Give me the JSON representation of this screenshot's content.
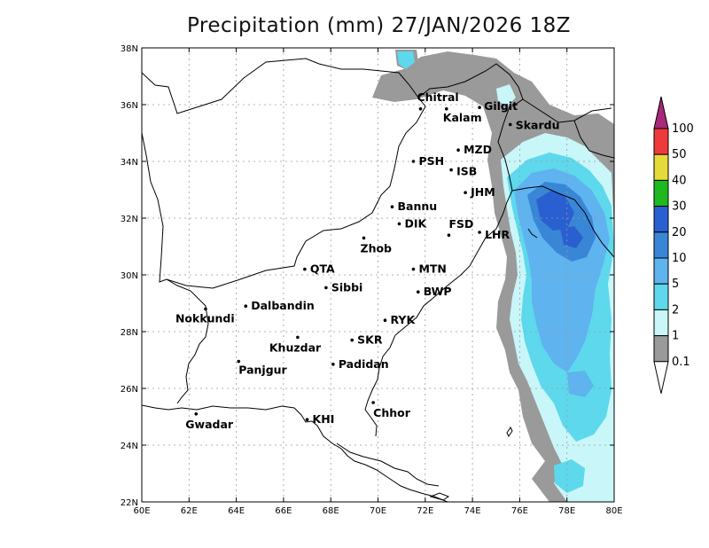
{
  "title": "Precipitation (mm) 27/JAN/2026 18Z",
  "map": {
    "x_ticks": [
      "60E",
      "62E",
      "64E",
      "66E",
      "68E",
      "70E",
      "72E",
      "74E",
      "76E",
      "78E",
      "80E"
    ],
    "y_ticks": [
      "22N",
      "24N",
      "26N",
      "28N",
      "30N",
      "32N",
      "34N",
      "36N",
      "38N"
    ],
    "lon_range": [
      60,
      80
    ],
    "lat_range": [
      22,
      38
    ],
    "cities": [
      {
        "name": "Chitral",
        "lon": 71.8,
        "lat": 35.85
      },
      {
        "name": "Kalam",
        "lon": 72.9,
        "lat": 35.85
      },
      {
        "name": "Gilgit",
        "lon": 74.3,
        "lat": 35.9
      },
      {
        "name": "Skardu",
        "lon": 75.6,
        "lat": 35.3
      },
      {
        "name": "MZD",
        "lon": 73.4,
        "lat": 34.4
      },
      {
        "name": "PSH",
        "lon": 71.5,
        "lat": 34.0
      },
      {
        "name": "ISB",
        "lon": 73.1,
        "lat": 33.7
      },
      {
        "name": "JHM",
        "lon": 73.7,
        "lat": 32.9
      },
      {
        "name": "Bannu",
        "lon": 70.6,
        "lat": 32.4
      },
      {
        "name": "DIK",
        "lon": 70.9,
        "lat": 31.8
      },
      {
        "name": "FSD",
        "lon": 73.0,
        "lat": 31.4
      },
      {
        "name": "LHR",
        "lon": 74.3,
        "lat": 31.5
      },
      {
        "name": "Zhob",
        "lon": 69.4,
        "lat": 31.3
      },
      {
        "name": "QTA",
        "lon": 66.9,
        "lat": 30.2
      },
      {
        "name": "MTN",
        "lon": 71.5,
        "lat": 30.2
      },
      {
        "name": "Sibbi",
        "lon": 67.8,
        "lat": 29.55
      },
      {
        "name": "BWP",
        "lon": 71.7,
        "lat": 29.4
      },
      {
        "name": "Dalbandin",
        "lon": 64.4,
        "lat": 28.9
      },
      {
        "name": "Nokkundi",
        "lon": 62.7,
        "lat": 28.8
      },
      {
        "name": "RYK",
        "lon": 70.3,
        "lat": 28.4
      },
      {
        "name": "Khuzdar",
        "lon": 66.6,
        "lat": 27.8
      },
      {
        "name": "SKR",
        "lon": 68.9,
        "lat": 27.7
      },
      {
        "name": "Padidan",
        "lon": 68.1,
        "lat": 26.85
      },
      {
        "name": "Panjgur",
        "lon": 64.1,
        "lat": 26.95
      },
      {
        "name": "Chhor",
        "lon": 69.8,
        "lat": 25.5
      },
      {
        "name": "Gwadar",
        "lon": 62.3,
        "lat": 25.1
      },
      {
        "name": "KHI",
        "lon": 67.0,
        "lat": 24.9
      }
    ]
  },
  "colorbar": {
    "labels": [
      "100",
      "50",
      "40",
      "30",
      "20",
      "10",
      "5",
      "2",
      "1",
      "0.1"
    ],
    "colors": [
      "#a8287a",
      "#f03a3a",
      "#e6d93a",
      "#1fb81f",
      "#2a5fd1",
      "#3a86d6",
      "#5fb3ef",
      "#5ed8ec",
      "#c9f6f8",
      "#9a9a9a"
    ]
  }
}
